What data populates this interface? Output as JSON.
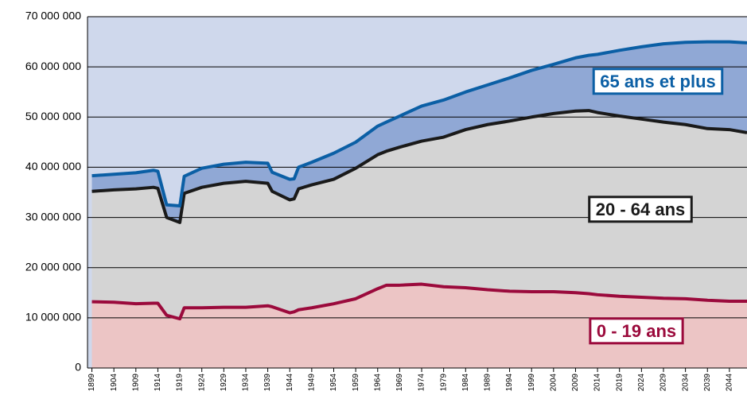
{
  "chart_data": {
    "type": "stacked-area",
    "x": [
      1899,
      1904,
      1909,
      1913,
      1914,
      1916,
      1919,
      1920,
      1924,
      1929,
      1934,
      1939,
      1940,
      1944,
      1945,
      1946,
      1949,
      1954,
      1959,
      1964,
      1966,
      1969,
      1974,
      1979,
      1984,
      1989,
      1994,
      1999,
      2004,
      2009,
      2012,
      2014,
      2019,
      2024,
      2029,
      2034,
      2039,
      2044,
      2048
    ],
    "xlim": [
      1898,
      2048
    ],
    "xticks": [
      1899,
      1904,
      1909,
      1914,
      1919,
      1924,
      1929,
      1934,
      1939,
      1944,
      1949,
      1954,
      1959,
      1964,
      1969,
      1974,
      1979,
      1984,
      1989,
      1994,
      1999,
      2004,
      2009,
      2014,
      2019,
      2024,
      2029,
      2034,
      2039,
      2044
    ],
    "ylim": [
      0,
      70000000
    ],
    "yticks": [
      0,
      {
        "value": 10000000,
        "label": "10 000 000"
      },
      {
        "value": 20000000,
        "label": "20 000 000"
      },
      {
        "value": 30000000,
        "label": "30 000 000"
      },
      {
        "value": 40000000,
        "label": "40 000 000"
      },
      {
        "value": 50000000,
        "label": "50 000 000"
      },
      {
        "value": 60000000,
        "label": "60 000 000"
      },
      {
        "value": 70000000,
        "label": "70 000 000"
      }
    ],
    "grid": true,
    "series": [
      {
        "name": "0 - 19 ans",
        "color": "#9b0a3c",
        "fill": "#ecc5c5",
        "values": [
          13200000,
          13100000,
          12800000,
          12900000,
          12900000,
          10500000,
          9800000,
          12000000,
          12000000,
          12100000,
          12100000,
          12400000,
          12200000,
          11000000,
          11200000,
          11600000,
          12000000,
          12800000,
          13800000,
          15800000,
          16500000,
          16500000,
          16700000,
          16200000,
          16000000,
          15600000,
          15300000,
          15200000,
          15200000,
          15000000,
          14800000,
          14600000,
          14300000,
          14100000,
          13900000,
          13800000,
          13500000,
          13300000,
          13300000
        ]
      },
      {
        "name": "20 - 64 ans",
        "color": "#1a1a1a",
        "fill": "#d4d4d4",
        "values": [
          22000000,
          22400000,
          22900000,
          23100000,
          22900000,
          19500000,
          19200000,
          22800000,
          24000000,
          24700000,
          25100000,
          24400000,
          23000000,
          22500000,
          22500000,
          24100000,
          24500000,
          24800000,
          26000000,
          26700000,
          26700000,
          27500000,
          28500000,
          29800000,
          31500000,
          32900000,
          33900000,
          34800000,
          35500000,
          36200000,
          36500000,
          36300000,
          35900000,
          35500000,
          35100000,
          34700000,
          34200000,
          34200000,
          33600000
        ]
      },
      {
        "name": "65 ans et plus",
        "color": "#0b5fa5",
        "fill": "#90a8d5",
        "values": [
          3100000,
          3100000,
          3200000,
          3400000,
          3400000,
          2500000,
          3300000,
          3400000,
          3800000,
          3800000,
          3800000,
          4000000,
          3800000,
          4100000,
          4000000,
          4300000,
          4500000,
          5200000,
          5200000,
          5700000,
          5800000,
          6200000,
          7000000,
          7400000,
          7500000,
          7900000,
          8600000,
          9300000,
          9800000,
          10600000,
          11000000,
          11600000,
          13100000,
          14400000,
          15600000,
          16400000,
          17300000,
          17500000,
          17900000
        ]
      }
    ]
  }
}
